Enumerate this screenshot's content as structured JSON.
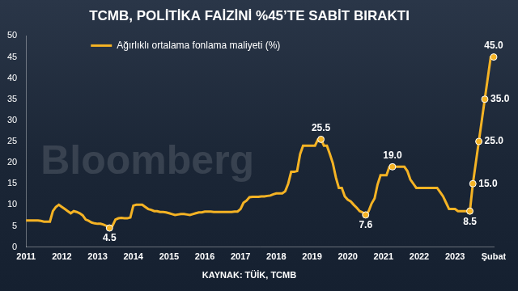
{
  "chart_data": {
    "type": "line",
    "title": "TCMB, POLİTİKA FAİZİNİ %45’TE SABİT BIRAKTI",
    "source": "KAYNAK: TÜİK, TCMB",
    "watermark": "Bloomberg",
    "categories": [
      "2011",
      null,
      null,
      null,
      null,
      null,
      null,
      null,
      null,
      null,
      null,
      null,
      "2012",
      null,
      null,
      null,
      null,
      null,
      null,
      null,
      null,
      null,
      null,
      null,
      "2013",
      null,
      null,
      null,
      null,
      null,
      null,
      null,
      null,
      null,
      null,
      null,
      "2014",
      null,
      null,
      null,
      null,
      null,
      null,
      null,
      null,
      null,
      null,
      null,
      "2015",
      null,
      null,
      null,
      null,
      null,
      null,
      null,
      null,
      null,
      null,
      null,
      "2016",
      null,
      null,
      null,
      null,
      null,
      null,
      null,
      null,
      null,
      null,
      null,
      "2017",
      null,
      null,
      null,
      null,
      null,
      null,
      null,
      null,
      null,
      null,
      null,
      "2018",
      null,
      null,
      null,
      null,
      null,
      null,
      null,
      null,
      null,
      null,
      null,
      "2019",
      null,
      null,
      null,
      null,
      null,
      null,
      null,
      null,
      null,
      null,
      null,
      "2020",
      null,
      null,
      null,
      null,
      null,
      null,
      null,
      null,
      null,
      null,
      null,
      "2021",
      null,
      null,
      null,
      null,
      null,
      null,
      null,
      null,
      null,
      null,
      null,
      "2022",
      null,
      null,
      null,
      null,
      null,
      null,
      null,
      null,
      null,
      null,
      null,
      "2023",
      null,
      null,
      null,
      null,
      null,
      null,
      null,
      null,
      null,
      null,
      null,
      null,
      "Şubat"
    ],
    "series": [
      {
        "name": "Ağırlıklı ortalama fonlama maliyeti (%)",
        "color": "#f5b324",
        "values": [
          6.3,
          6.3,
          6.3,
          6.3,
          6.3,
          6.2,
          6.0,
          6.0,
          6.0,
          8.5,
          9.5,
          10.0,
          9.5,
          9.0,
          8.5,
          8.0,
          8.5,
          8.3,
          8.0,
          7.5,
          6.5,
          6.2,
          5.8,
          5.6,
          5.5,
          5.5,
          5.3,
          5.0,
          4.5,
          5.0,
          6.5,
          6.8,
          6.9,
          6.8,
          6.8,
          7.0,
          9.8,
          10.0,
          10.0,
          10.0,
          9.5,
          9.0,
          8.8,
          8.5,
          8.5,
          8.3,
          8.3,
          8.2,
          8.0,
          7.8,
          7.6,
          7.7,
          7.8,
          7.8,
          7.7,
          7.6,
          7.8,
          8.0,
          8.2,
          8.2,
          8.4,
          8.4,
          8.4,
          8.3,
          8.3,
          8.3,
          8.3,
          8.3,
          8.3,
          8.3,
          8.4,
          8.4,
          9.0,
          10.5,
          11.0,
          11.8,
          11.9,
          11.9,
          11.9,
          12.0,
          12.0,
          12.1,
          12.2,
          12.5,
          12.7,
          12.7,
          12.7,
          13.2,
          15.0,
          17.8,
          17.8,
          18.0,
          22.0,
          24.0,
          24.0,
          24.0,
          24.0,
          24.0,
          25.5,
          25.5,
          24.0,
          24.0,
          22.0,
          19.8,
          16.5,
          14.0,
          14.0,
          12.0,
          11.2,
          10.8,
          10.0,
          9.3,
          8.5,
          8.2,
          7.6,
          8.5,
          10.3,
          11.5,
          14.8,
          17.0,
          17.0,
          17.0,
          19.0,
          19.0,
          19.0,
          19.0,
          19.0,
          19.0,
          18.0,
          16.0,
          15.0,
          14.0,
          14.0,
          14.0,
          14.0,
          14.0,
          14.0,
          14.0,
          14.0,
          13.0,
          12.0,
          10.5,
          9.0,
          9.0,
          9.0,
          8.5,
          8.5,
          8.5,
          8.5,
          8.5,
          15.0,
          20.0,
          25.0,
          30.0,
          35.0,
          40.0,
          45.0,
          45.0
        ],
        "value_labels": [
          null,
          null,
          null,
          null,
          null,
          null,
          null,
          null,
          null,
          null,
          null,
          null,
          null,
          null,
          null,
          null,
          null,
          null,
          null,
          null,
          null,
          null,
          null,
          null,
          null,
          null,
          null,
          null,
          "4.5",
          null,
          null,
          null,
          null,
          null,
          null,
          null,
          null,
          null,
          null,
          null,
          null,
          null,
          null,
          null,
          null,
          null,
          null,
          null,
          null,
          null,
          null,
          null,
          null,
          null,
          null,
          null,
          null,
          null,
          null,
          null,
          null,
          null,
          null,
          null,
          null,
          null,
          null,
          null,
          null,
          null,
          null,
          null,
          null,
          null,
          null,
          null,
          null,
          null,
          null,
          null,
          null,
          null,
          null,
          null,
          null,
          null,
          null,
          null,
          null,
          null,
          null,
          null,
          null,
          null,
          null,
          null,
          null,
          null,
          null,
          "25.5",
          null,
          null,
          null,
          null,
          null,
          null,
          null,
          null,
          null,
          null,
          null,
          null,
          null,
          null,
          "7.6",
          null,
          null,
          null,
          null,
          null,
          null,
          null,
          null,
          "19.0",
          null,
          null,
          null,
          null,
          null,
          null,
          null,
          null,
          null,
          null,
          null,
          null,
          null,
          null,
          null,
          null,
          null,
          null,
          null,
          null,
          null,
          null,
          null,
          null,
          null,
          "8.5",
          "15.0",
          null,
          "25.0",
          null,
          "35.0",
          null,
          null,
          "45.0"
        ]
      }
    ],
    "ylim": [
      0,
      50
    ],
    "yticks": [
      0,
      5,
      10,
      15,
      20,
      25,
      30,
      35,
      40,
      45,
      50
    ],
    "grid": false,
    "legend": "top-left",
    "data_labels": true
  }
}
